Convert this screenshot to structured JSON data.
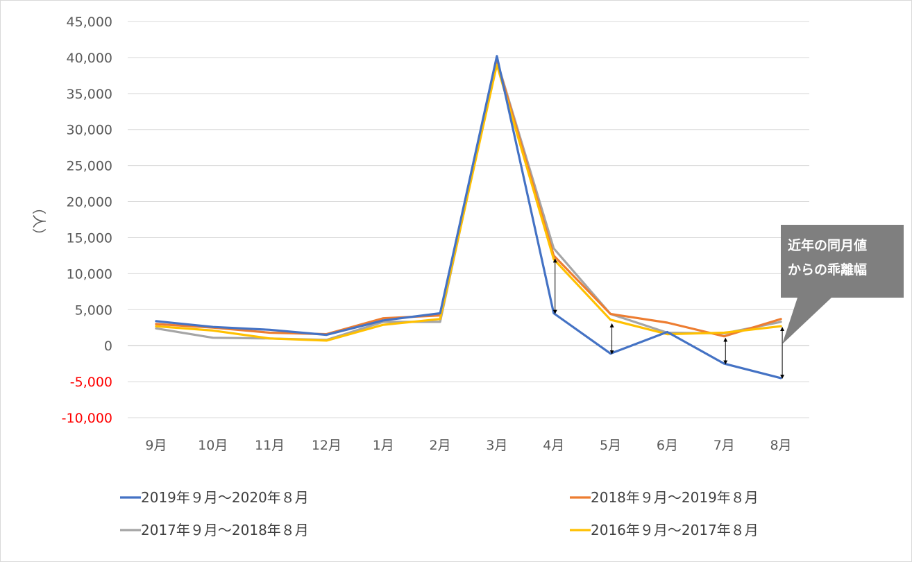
{
  "chart_data": {
    "type": "line",
    "title": "",
    "xlabel": "",
    "ylabel": "（人）",
    "ylim": [
      -10000,
      45000
    ],
    "yticks": [
      45000,
      40000,
      35000,
      30000,
      25000,
      20000,
      15000,
      10000,
      5000,
      0,
      -5000,
      -10000
    ],
    "ytick_labels": [
      "45,000",
      "40,000",
      "35,000",
      "30,000",
      "25,000",
      "20,000",
      "15,000",
      "10,000",
      "5,000",
      "0",
      "-5,000",
      "-10,000"
    ],
    "categories": [
      "9月",
      "10月",
      "11月",
      "12月",
      "1月",
      "2月",
      "3月",
      "4月",
      "5月",
      "6月",
      "7月",
      "8月"
    ],
    "grid": true,
    "legend_position": "bottom",
    "series": [
      {
        "name": "2019年９月～2020年８月",
        "color": "#4472c4",
        "values": [
          3400,
          2600,
          2200,
          1500,
          3500,
          4500,
          40200,
          4500,
          -1100,
          1900,
          -2500,
          -4500
        ]
      },
      {
        "name": "2018年９月～2019年８月",
        "color": "#ed7d31",
        "values": [
          3000,
          2500,
          1800,
          1600,
          3800,
          4200,
          39500,
          12500,
          4400,
          3200,
          1300,
          3700
        ]
      },
      {
        "name": "2017年９月～2018年８月",
        "color": "#a5a5a5",
        "values": [
          2400,
          1100,
          1000,
          800,
          3300,
          3300,
          39600,
          13500,
          4400,
          1800,
          1700,
          3300
        ]
      },
      {
        "name": "2016年９月～2017年８月",
        "color": "#ffc000",
        "values": [
          2700,
          2100,
          1000,
          700,
          2900,
          3700,
          39000,
          12000,
          3600,
          1600,
          1800,
          2700
        ]
      }
    ],
    "annotations": {
      "callout_lines": [
        "近年の同月値",
        "からの乖離幅"
      ],
      "callout_color": "#7f7f7f",
      "gap_arrows": [
        {
          "category": "4月",
          "from": 12000,
          "to": 4500
        },
        {
          "category": "5月",
          "from": 3000,
          "to": -1100
        },
        {
          "category": "7月",
          "from": 1000,
          "to": -2500
        },
        {
          "category": "8月",
          "from": 2500,
          "to": -4500
        }
      ]
    }
  }
}
